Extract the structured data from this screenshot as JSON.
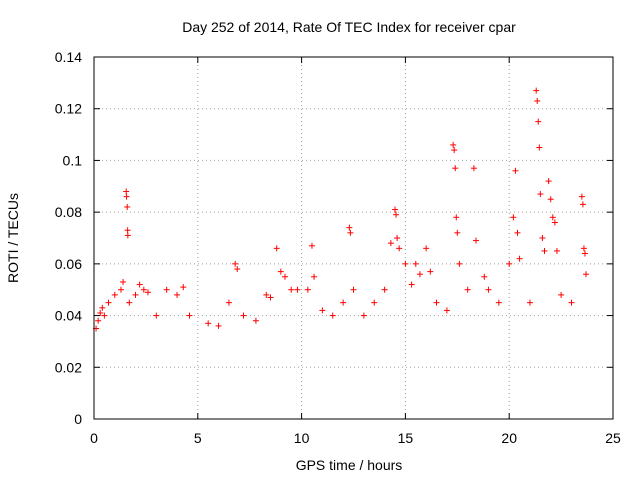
{
  "chart_data": {
    "type": "scatter",
    "title": "Day 252 of 2014, Rate Of TEC Index for receiver cpar",
    "xlabel": "GPS time / hours",
    "ylabel": "ROTI / TECUs",
    "xlim": [
      0,
      25
    ],
    "ylim": [
      0,
      0.14
    ],
    "x_ticks": [
      0,
      5,
      10,
      15,
      20,
      25
    ],
    "x_tick_labels": [
      "0",
      "5",
      "10",
      "15",
      "20",
      "25"
    ],
    "y_ticks": [
      0,
      0.02,
      0.04,
      0.06,
      0.08,
      0.1,
      0.12,
      0.14
    ],
    "y_tick_labels": [
      "0",
      "0.02",
      "0.04",
      "0.06",
      "0.08",
      "0.1",
      "0.12",
      "0.14"
    ],
    "grid": true,
    "marker": "+",
    "marker_color": "#ff0000",
    "series": [
      {
        "name": "ROTI",
        "points": [
          [
            0.1,
            0.035
          ],
          [
            0.2,
            0.038
          ],
          [
            0.3,
            0.041
          ],
          [
            0.4,
            0.043
          ],
          [
            0.5,
            0.04
          ],
          [
            0.7,
            0.045
          ],
          [
            1.0,
            0.048
          ],
          [
            1.3,
            0.05
          ],
          [
            1.4,
            0.053
          ],
          [
            1.55,
            0.088
          ],
          [
            1.57,
            0.086
          ],
          [
            1.6,
            0.082
          ],
          [
            1.62,
            0.073
          ],
          [
            1.63,
            0.071
          ],
          [
            1.7,
            0.045
          ],
          [
            2.0,
            0.048
          ],
          [
            2.2,
            0.052
          ],
          [
            2.4,
            0.05
          ],
          [
            2.6,
            0.049
          ],
          [
            3.0,
            0.04
          ],
          [
            3.5,
            0.05
          ],
          [
            4.0,
            0.048
          ],
          [
            4.3,
            0.051
          ],
          [
            4.6,
            0.04
          ],
          [
            5.5,
            0.037
          ],
          [
            6.0,
            0.036
          ],
          [
            6.5,
            0.045
          ],
          [
            6.8,
            0.06
          ],
          [
            6.9,
            0.058
          ],
          [
            7.2,
            0.04
          ],
          [
            7.8,
            0.038
          ],
          [
            8.3,
            0.048
          ],
          [
            8.5,
            0.047
          ],
          [
            8.8,
            0.066
          ],
          [
            9.0,
            0.057
          ],
          [
            9.2,
            0.055
          ],
          [
            9.5,
            0.05
          ],
          [
            9.8,
            0.05
          ],
          [
            10.3,
            0.05
          ],
          [
            10.5,
            0.067
          ],
          [
            10.6,
            0.055
          ],
          [
            11.0,
            0.042
          ],
          [
            11.5,
            0.04
          ],
          [
            12.0,
            0.045
          ],
          [
            12.3,
            0.074
          ],
          [
            12.35,
            0.072
          ],
          [
            12.5,
            0.05
          ],
          [
            13.0,
            0.04
          ],
          [
            13.5,
            0.045
          ],
          [
            14.0,
            0.05
          ],
          [
            14.3,
            0.068
          ],
          [
            14.5,
            0.081
          ],
          [
            14.55,
            0.079
          ],
          [
            14.6,
            0.07
          ],
          [
            14.7,
            0.066
          ],
          [
            15.0,
            0.06
          ],
          [
            15.3,
            0.052
          ],
          [
            15.5,
            0.06
          ],
          [
            15.7,
            0.056
          ],
          [
            16.0,
            0.066
          ],
          [
            16.2,
            0.057
          ],
          [
            16.5,
            0.045
          ],
          [
            17.0,
            0.042
          ],
          [
            17.3,
            0.106
          ],
          [
            17.35,
            0.104
          ],
          [
            17.4,
            0.097
          ],
          [
            17.45,
            0.078
          ],
          [
            17.5,
            0.072
          ],
          [
            17.6,
            0.06
          ],
          [
            18.0,
            0.05
          ],
          [
            18.3,
            0.097
          ],
          [
            18.4,
            0.069
          ],
          [
            18.8,
            0.055
          ],
          [
            19.0,
            0.05
          ],
          [
            19.5,
            0.045
          ],
          [
            20.0,
            0.06
          ],
          [
            20.2,
            0.078
          ],
          [
            20.3,
            0.096
          ],
          [
            20.4,
            0.072
          ],
          [
            20.5,
            0.062
          ],
          [
            21.0,
            0.045
          ],
          [
            21.3,
            0.127
          ],
          [
            21.35,
            0.123
          ],
          [
            21.4,
            0.115
          ],
          [
            21.45,
            0.105
          ],
          [
            21.5,
            0.087
          ],
          [
            21.6,
            0.07
          ],
          [
            21.7,
            0.065
          ],
          [
            21.9,
            0.092
          ],
          [
            22.0,
            0.085
          ],
          [
            22.1,
            0.078
          ],
          [
            22.2,
            0.076
          ],
          [
            22.3,
            0.065
          ],
          [
            22.5,
            0.048
          ],
          [
            23.0,
            0.045
          ],
          [
            23.5,
            0.086
          ],
          [
            23.55,
            0.083
          ],
          [
            23.6,
            0.066
          ],
          [
            23.65,
            0.064
          ],
          [
            23.7,
            0.056
          ]
        ]
      }
    ]
  }
}
